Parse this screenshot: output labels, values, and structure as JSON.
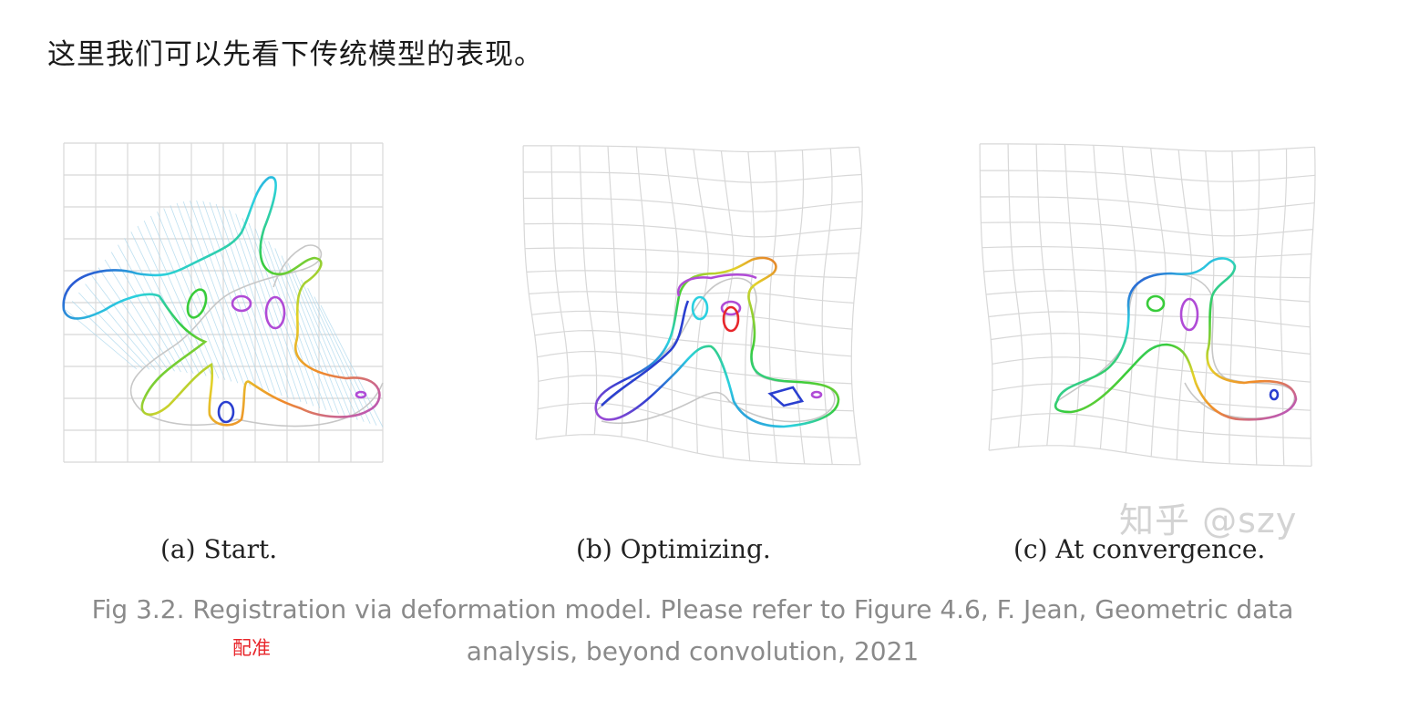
{
  "intro_text": "这里我们可以先看下传统模型的表现。",
  "panels": [
    {
      "id": "a",
      "label": "(a) Start."
    },
    {
      "id": "b",
      "label": "(b) Optimizing."
    },
    {
      "id": "c",
      "label": "(c) At convergence."
    }
  ],
  "watermark": "知乎 @szy",
  "caption": "Fig 3.2. Registration via deformation model. Please refer to Figure 4.6, F. Jean, Geometric data analysis, beyond convolution, 2021",
  "annotation": "配准",
  "colors": {
    "grid": "#d8d8d8",
    "target_shape": "#c7c7c7",
    "correspondence_lines": "#a9d6ec",
    "curve_purple": "#b04bd6",
    "curve_blue": "#2a3fd0",
    "curve_cyan": "#2bd0e0",
    "curve_green": "#38cc3a",
    "curve_yellow": "#e3d22a",
    "curve_orange": "#f08a2a",
    "curve_red": "#e8262b",
    "caption_text": "#8a8a8a",
    "annotation_text": "#e8262b"
  }
}
